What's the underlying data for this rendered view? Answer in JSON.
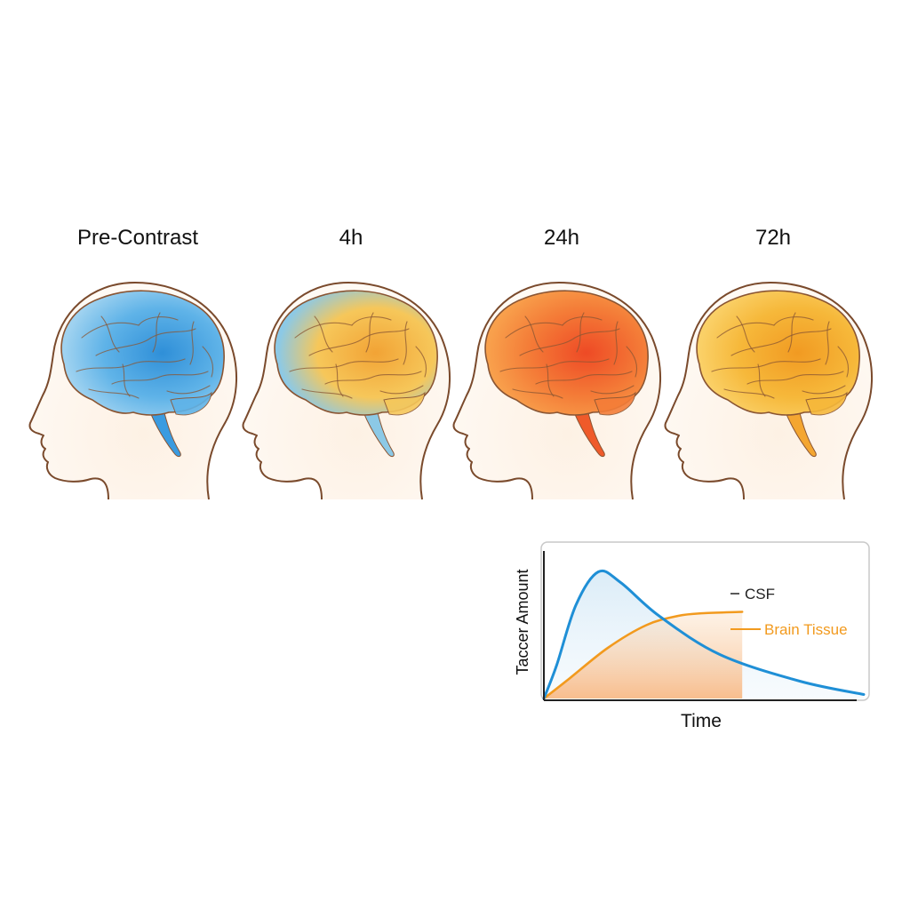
{
  "panels": [
    {
      "title": "Pre-Contrast",
      "colors": [
        "#2f8fd8",
        "#5fb3e8",
        "#9fd2f0"
      ],
      "stem": "#3a9be0"
    },
    {
      "title": "4h",
      "colors": [
        "#f2a335",
        "#f6c75a",
        "#8cc9e6"
      ],
      "stem": "#8cc9e6"
    },
    {
      "title": "24h",
      "colors": [
        "#ee4a25",
        "#f47d38",
        "#f8a04c"
      ],
      "stem": "#ef5a2a"
    },
    {
      "title": "72h",
      "colors": [
        "#f19a22",
        "#f6b83a",
        "#fad067"
      ],
      "stem": "#f4a631"
    }
  ],
  "chart_data": {
    "type": "line",
    "xlabel": "Time",
    "ylabel": "Taccer Amount",
    "series": [
      {
        "name": "CSF",
        "color": "#1f8fd6",
        "points": [
          [
            0,
            0
          ],
          [
            0.04,
            0.25
          ],
          [
            0.1,
            0.7
          ],
          [
            0.17,
            0.95
          ],
          [
            0.24,
            0.87
          ],
          [
            0.36,
            0.62
          ],
          [
            0.55,
            0.33
          ],
          [
            0.8,
            0.13
          ],
          [
            1.0,
            0.03
          ]
        ]
      },
      {
        "name": "Brain Tissue",
        "color": "#f29a1e",
        "points": [
          [
            0,
            0
          ],
          [
            0.08,
            0.15
          ],
          [
            0.2,
            0.38
          ],
          [
            0.32,
            0.55
          ],
          [
            0.42,
            0.62
          ],
          [
            0.5,
            0.64
          ],
          [
            0.62,
            0.65
          ]
        ]
      }
    ],
    "legend": {
      "csf_label": "CSF",
      "brain_label": "Brain Tissue"
    }
  }
}
